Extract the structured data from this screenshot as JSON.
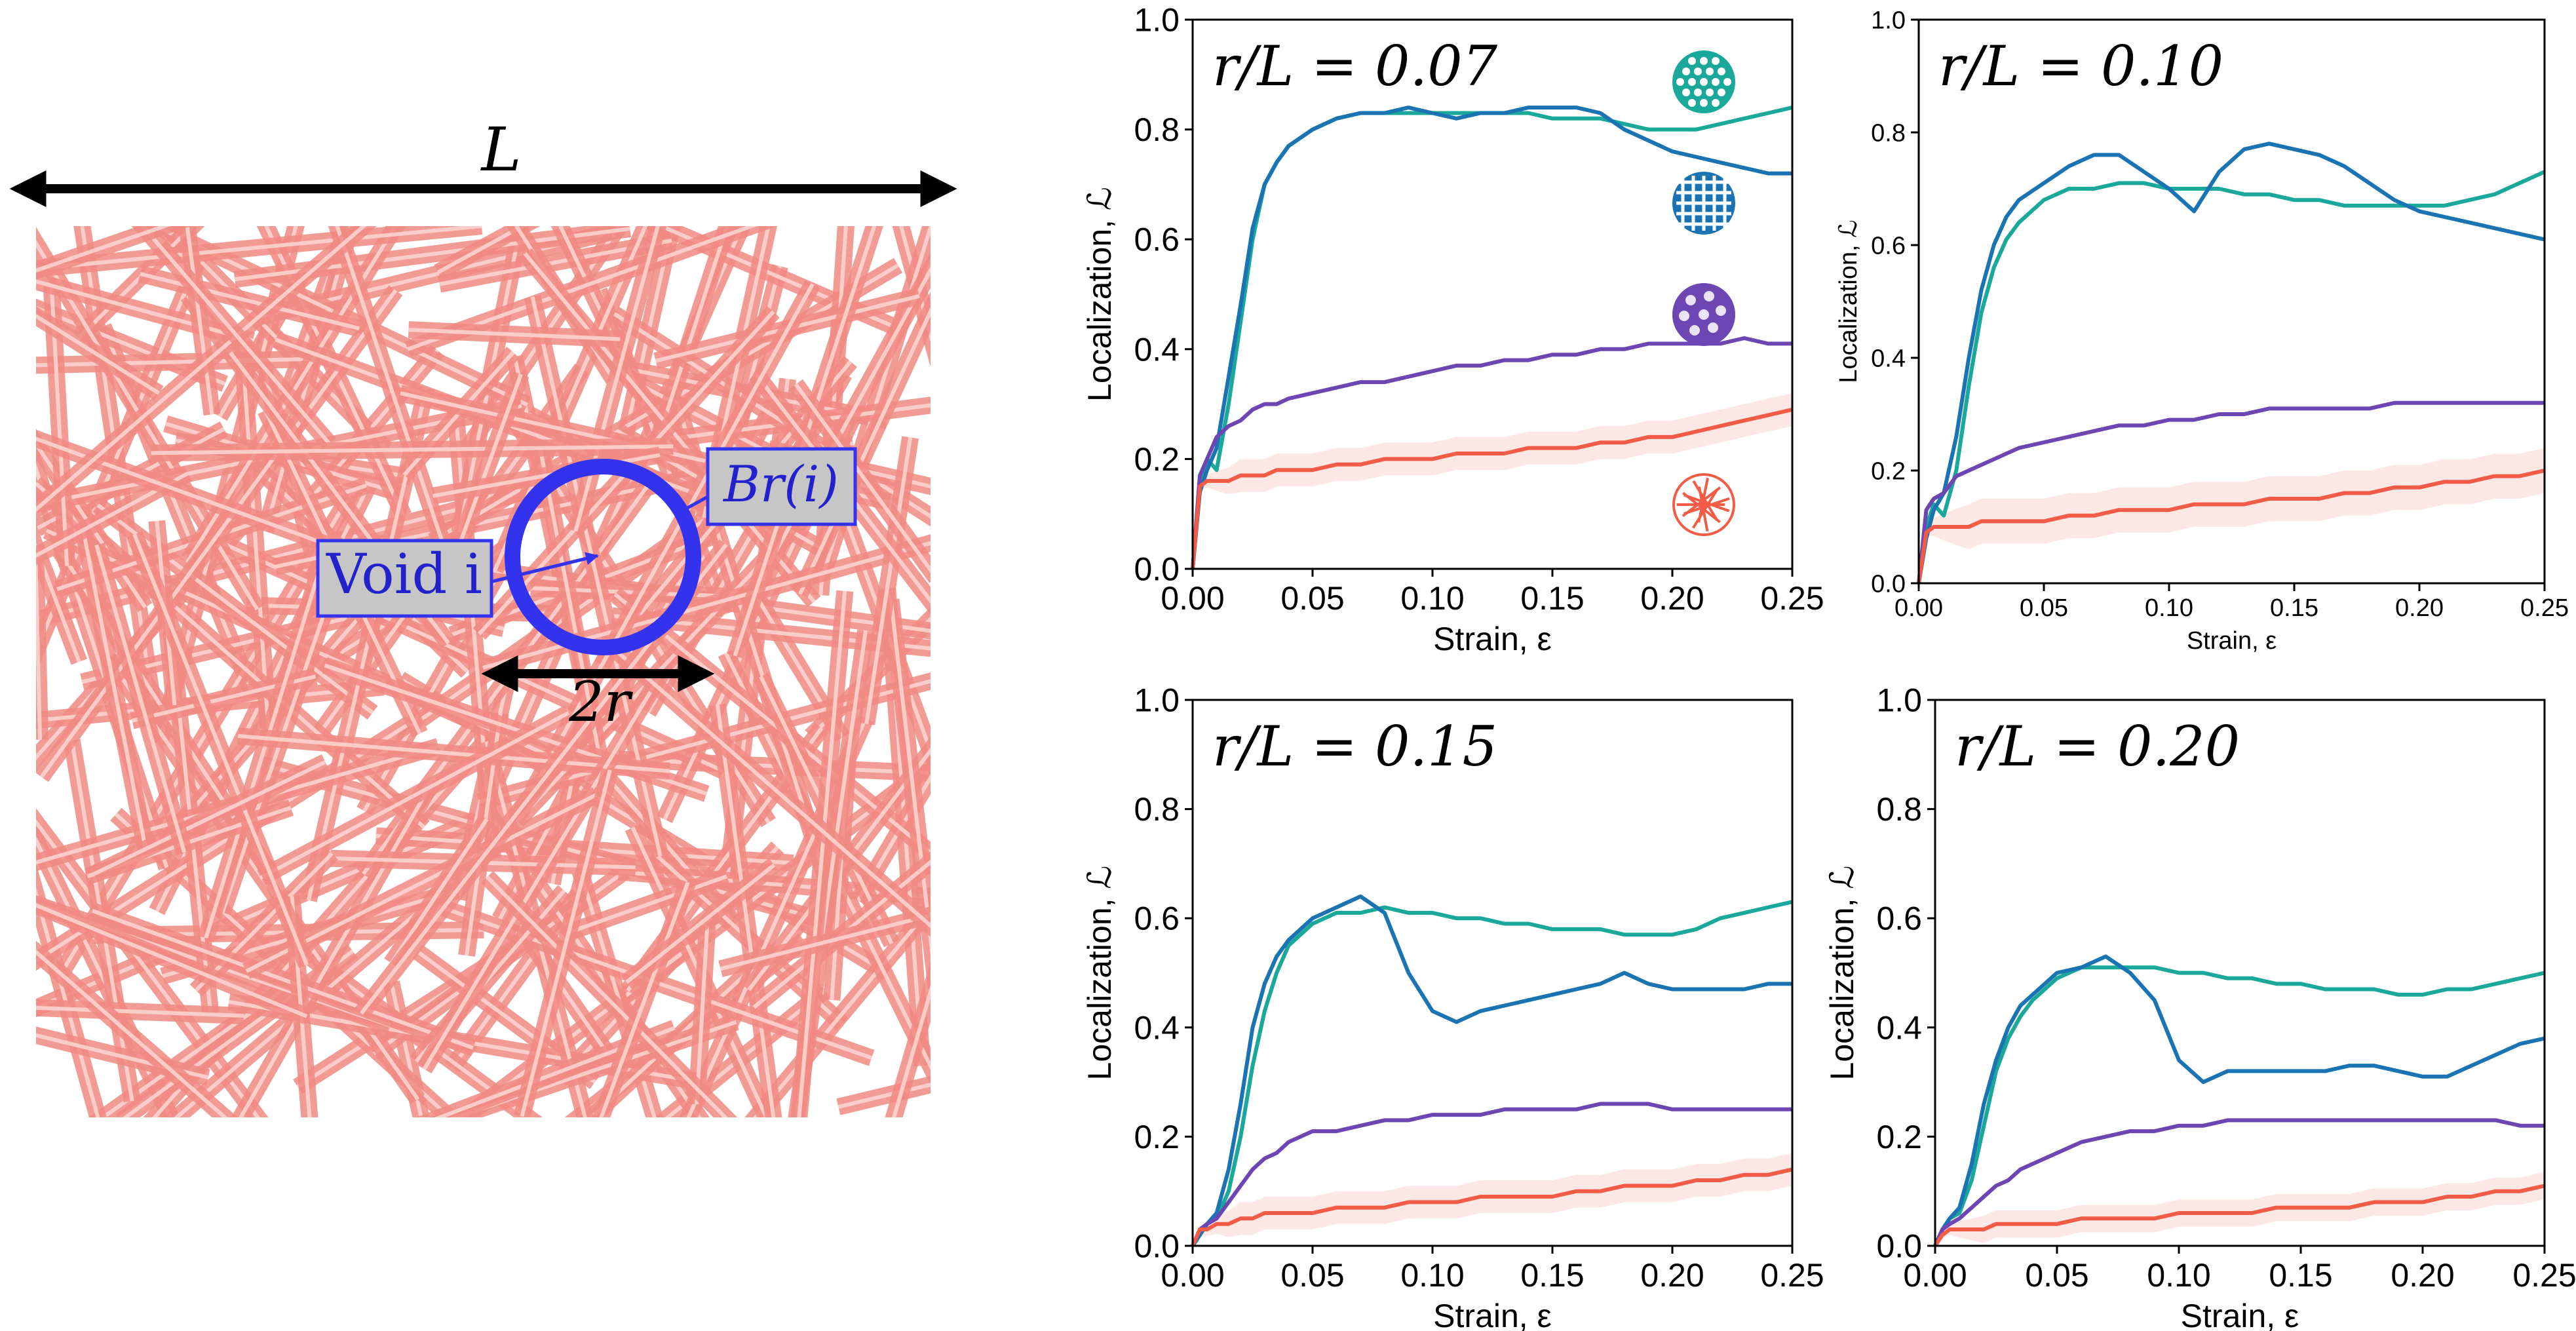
{
  "schematic": {
    "length_label": "L",
    "radius_label": "2r",
    "void_label": "Void i",
    "ball_label": "Br(i)",
    "fiber_color": "#f08a82",
    "circle_color": "#3333ee"
  },
  "legend_icons": [
    {
      "name": "hexagonal-network-icon",
      "color": "#1aa89a"
    },
    {
      "name": "square-lattice-icon",
      "color": "#1a74b4"
    },
    {
      "name": "voronoi-network-icon",
      "color": "#6e46b4"
    },
    {
      "name": "random-fiber-network-icon",
      "color": "#f25c47"
    }
  ],
  "chart_data": [
    {
      "type": "line",
      "title": "r/L = 0.07",
      "xlabel": "Strain, ε",
      "ylabel": "Localization, ℒ",
      "xlim": [
        0.0,
        0.25
      ],
      "ylim": [
        0.0,
        1.0
      ],
      "xticks": [
        "0.00",
        "0.05",
        "0.10",
        "0.15",
        "0.20",
        "0.25"
      ],
      "yticks": [
        "0.0",
        "0.2",
        "0.4",
        "0.6",
        "0.8",
        "1.0"
      ],
      "x": [
        0,
        0.003,
        0.006,
        0.01,
        0.015,
        0.02,
        0.025,
        0.03,
        0.035,
        0.04,
        0.05,
        0.06,
        0.07,
        0.08,
        0.09,
        0.1,
        0.11,
        0.12,
        0.13,
        0.14,
        0.15,
        0.16,
        0.17,
        0.18,
        0.19,
        0.2,
        0.21,
        0.22,
        0.23,
        0.24,
        0.25
      ],
      "series": [
        {
          "name": "hexagonal",
          "color": "#1aa89a",
          "values": [
            0.0,
            0.15,
            0.2,
            0.18,
            0.3,
            0.45,
            0.6,
            0.7,
            0.74,
            0.77,
            0.8,
            0.82,
            0.83,
            0.83,
            0.83,
            0.83,
            0.83,
            0.83,
            0.83,
            0.83,
            0.82,
            0.82,
            0.82,
            0.81,
            0.8,
            0.8,
            0.8,
            0.81,
            0.82,
            0.83,
            0.84
          ]
        },
        {
          "name": "square",
          "color": "#1a74b4",
          "values": [
            0.0,
            0.14,
            0.18,
            0.22,
            0.35,
            0.48,
            0.62,
            0.7,
            0.74,
            0.77,
            0.8,
            0.82,
            0.83,
            0.83,
            0.84,
            0.83,
            0.82,
            0.83,
            0.83,
            0.84,
            0.84,
            0.84,
            0.83,
            0.8,
            0.78,
            0.76,
            0.75,
            0.74,
            0.73,
            0.72,
            0.72
          ]
        },
        {
          "name": "voronoi",
          "color": "#6e46b4",
          "values": [
            0.0,
            0.17,
            0.2,
            0.24,
            0.26,
            0.27,
            0.29,
            0.3,
            0.3,
            0.31,
            0.32,
            0.33,
            0.34,
            0.34,
            0.35,
            0.36,
            0.37,
            0.37,
            0.38,
            0.38,
            0.39,
            0.39,
            0.4,
            0.4,
            0.41,
            0.41,
            0.41,
            0.41,
            0.42,
            0.41,
            0.41
          ]
        },
        {
          "name": "random fiber",
          "color": "#f25c47",
          "band": 0.03,
          "values": [
            0.0,
            0.15,
            0.16,
            0.16,
            0.16,
            0.17,
            0.17,
            0.17,
            0.18,
            0.18,
            0.18,
            0.19,
            0.19,
            0.2,
            0.2,
            0.2,
            0.21,
            0.21,
            0.21,
            0.22,
            0.22,
            0.22,
            0.23,
            0.23,
            0.24,
            0.24,
            0.25,
            0.26,
            0.27,
            0.28,
            0.29
          ]
        }
      ]
    },
    {
      "type": "line",
      "title": "r/L = 0.10",
      "xlabel": "Strain, ε",
      "ylabel": "Localization, ℒ",
      "xlim": [
        0.0,
        0.25
      ],
      "ylim": [
        0.0,
        1.0
      ],
      "xticks": [
        "0.00",
        "0.05",
        "0.10",
        "0.15",
        "0.20",
        "0.25"
      ],
      "yticks": [
        "0.0",
        "0.2",
        "0.4",
        "0.6",
        "0.8",
        "1.0"
      ],
      "x": [
        0,
        0.003,
        0.006,
        0.01,
        0.015,
        0.02,
        0.025,
        0.03,
        0.035,
        0.04,
        0.05,
        0.06,
        0.07,
        0.08,
        0.09,
        0.1,
        0.11,
        0.12,
        0.13,
        0.14,
        0.15,
        0.16,
        0.17,
        0.18,
        0.19,
        0.2,
        0.21,
        0.22,
        0.23,
        0.24,
        0.25
      ],
      "series": [
        {
          "name": "hexagonal",
          "color": "#1aa89a",
          "values": [
            0.0,
            0.1,
            0.14,
            0.12,
            0.2,
            0.35,
            0.48,
            0.56,
            0.61,
            0.64,
            0.68,
            0.7,
            0.7,
            0.71,
            0.71,
            0.7,
            0.7,
            0.7,
            0.69,
            0.69,
            0.68,
            0.68,
            0.67,
            0.67,
            0.67,
            0.67,
            0.67,
            0.68,
            0.69,
            0.71,
            0.73
          ]
        },
        {
          "name": "square",
          "color": "#1a74b4",
          "values": [
            0.0,
            0.08,
            0.13,
            0.16,
            0.26,
            0.4,
            0.52,
            0.6,
            0.65,
            0.68,
            0.71,
            0.74,
            0.76,
            0.76,
            0.73,
            0.7,
            0.66,
            0.73,
            0.77,
            0.78,
            0.77,
            0.76,
            0.74,
            0.71,
            0.68,
            0.66,
            0.65,
            0.64,
            0.63,
            0.62,
            0.61
          ]
        },
        {
          "name": "voronoi",
          "color": "#6e46b4",
          "values": [
            0.0,
            0.13,
            0.15,
            0.16,
            0.19,
            0.2,
            0.21,
            0.22,
            0.23,
            0.24,
            0.25,
            0.26,
            0.27,
            0.28,
            0.28,
            0.29,
            0.29,
            0.3,
            0.3,
            0.31,
            0.31,
            0.31,
            0.31,
            0.31,
            0.32,
            0.32,
            0.32,
            0.32,
            0.32,
            0.32,
            0.32
          ]
        },
        {
          "name": "random fiber",
          "color": "#f25c47",
          "band": 0.04,
          "values": [
            0.0,
            0.09,
            0.1,
            0.1,
            0.1,
            0.1,
            0.11,
            0.11,
            0.11,
            0.11,
            0.11,
            0.12,
            0.12,
            0.13,
            0.13,
            0.13,
            0.14,
            0.14,
            0.14,
            0.15,
            0.15,
            0.15,
            0.16,
            0.16,
            0.17,
            0.17,
            0.18,
            0.18,
            0.19,
            0.19,
            0.2
          ]
        }
      ]
    },
    {
      "type": "line",
      "title": "r/L = 0.15",
      "xlabel": "Strain, ε",
      "ylabel": "Localization, ℒ",
      "xlim": [
        0.0,
        0.25
      ],
      "ylim": [
        0.0,
        1.0
      ],
      "xticks": [
        "0.00",
        "0.05",
        "0.10",
        "0.15",
        "0.20",
        "0.25"
      ],
      "yticks": [
        "0.0",
        "0.2",
        "0.4",
        "0.6",
        "0.8",
        "1.0"
      ],
      "x": [
        0,
        0.003,
        0.006,
        0.01,
        0.015,
        0.02,
        0.025,
        0.03,
        0.035,
        0.04,
        0.05,
        0.06,
        0.07,
        0.08,
        0.09,
        0.1,
        0.11,
        0.12,
        0.13,
        0.14,
        0.15,
        0.16,
        0.17,
        0.18,
        0.19,
        0.2,
        0.21,
        0.22,
        0.23,
        0.24,
        0.25
      ],
      "series": [
        {
          "name": "hexagonal",
          "color": "#1aa89a",
          "values": [
            0.0,
            0.02,
            0.04,
            0.05,
            0.1,
            0.2,
            0.33,
            0.43,
            0.5,
            0.55,
            0.59,
            0.61,
            0.61,
            0.62,
            0.61,
            0.61,
            0.6,
            0.6,
            0.59,
            0.59,
            0.58,
            0.58,
            0.58,
            0.57,
            0.57,
            0.57,
            0.58,
            0.6,
            0.61,
            0.62,
            0.63
          ]
        },
        {
          "name": "square",
          "color": "#1a74b4",
          "values": [
            0.0,
            0.02,
            0.04,
            0.06,
            0.14,
            0.26,
            0.4,
            0.48,
            0.53,
            0.56,
            0.6,
            0.62,
            0.64,
            0.61,
            0.5,
            0.43,
            0.41,
            0.43,
            0.44,
            0.45,
            0.46,
            0.47,
            0.48,
            0.5,
            0.48,
            0.47,
            0.47,
            0.47,
            0.47,
            0.48,
            0.48
          ]
        },
        {
          "name": "voronoi",
          "color": "#6e46b4",
          "values": [
            0.0,
            0.03,
            0.04,
            0.05,
            0.08,
            0.11,
            0.14,
            0.16,
            0.17,
            0.19,
            0.21,
            0.21,
            0.22,
            0.23,
            0.23,
            0.24,
            0.24,
            0.24,
            0.25,
            0.25,
            0.25,
            0.25,
            0.26,
            0.26,
            0.26,
            0.25,
            0.25,
            0.25,
            0.25,
            0.25,
            0.25
          ]
        },
        {
          "name": "random fiber",
          "color": "#f25c47",
          "band": 0.03,
          "values": [
            0.0,
            0.03,
            0.03,
            0.04,
            0.04,
            0.05,
            0.05,
            0.06,
            0.06,
            0.06,
            0.06,
            0.07,
            0.07,
            0.07,
            0.08,
            0.08,
            0.08,
            0.09,
            0.09,
            0.09,
            0.09,
            0.1,
            0.1,
            0.11,
            0.11,
            0.11,
            0.12,
            0.12,
            0.13,
            0.13,
            0.14
          ]
        }
      ]
    },
    {
      "type": "line",
      "title": "r/L = 0.20",
      "xlabel": "Strain, ε",
      "ylabel": "Localization, ℒ",
      "xlim": [
        0.0,
        0.25
      ],
      "ylim": [
        0.0,
        1.0
      ],
      "xticks": [
        "0.00",
        "0.05",
        "0.10",
        "0.15",
        "0.20",
        "0.25"
      ],
      "yticks": [
        "0.0",
        "0.2",
        "0.4",
        "0.6",
        "0.8",
        "1.0"
      ],
      "x": [
        0,
        0.003,
        0.006,
        0.01,
        0.015,
        0.02,
        0.025,
        0.03,
        0.035,
        0.04,
        0.05,
        0.06,
        0.07,
        0.08,
        0.09,
        0.1,
        0.11,
        0.12,
        0.13,
        0.14,
        0.15,
        0.16,
        0.17,
        0.18,
        0.19,
        0.2,
        0.21,
        0.22,
        0.23,
        0.24,
        0.25
      ],
      "series": [
        {
          "name": "hexagonal",
          "color": "#1aa89a",
          "values": [
            0.0,
            0.03,
            0.05,
            0.06,
            0.12,
            0.22,
            0.32,
            0.38,
            0.42,
            0.45,
            0.49,
            0.51,
            0.51,
            0.51,
            0.51,
            0.5,
            0.5,
            0.49,
            0.49,
            0.48,
            0.48,
            0.47,
            0.47,
            0.47,
            0.46,
            0.46,
            0.47,
            0.47,
            0.48,
            0.49,
            0.5
          ]
        },
        {
          "name": "square",
          "color": "#1a74b4",
          "values": [
            0.0,
            0.03,
            0.05,
            0.07,
            0.15,
            0.26,
            0.34,
            0.4,
            0.44,
            0.46,
            0.5,
            0.51,
            0.53,
            0.5,
            0.45,
            0.34,
            0.3,
            0.32,
            0.32,
            0.32,
            0.32,
            0.32,
            0.33,
            0.33,
            0.32,
            0.31,
            0.31,
            0.33,
            0.35,
            0.37,
            0.38
          ]
        },
        {
          "name": "voronoi",
          "color": "#6e46b4",
          "values": [
            0.0,
            0.03,
            0.04,
            0.05,
            0.07,
            0.09,
            0.11,
            0.12,
            0.14,
            0.15,
            0.17,
            0.19,
            0.2,
            0.21,
            0.21,
            0.22,
            0.22,
            0.23,
            0.23,
            0.23,
            0.23,
            0.23,
            0.23,
            0.23,
            0.23,
            0.23,
            0.23,
            0.23,
            0.23,
            0.22,
            0.22
          ]
        },
        {
          "name": "random fiber",
          "color": "#f25c47",
          "band": 0.025,
          "values": [
            0.0,
            0.02,
            0.03,
            0.03,
            0.03,
            0.03,
            0.04,
            0.04,
            0.04,
            0.04,
            0.04,
            0.05,
            0.05,
            0.05,
            0.05,
            0.06,
            0.06,
            0.06,
            0.06,
            0.07,
            0.07,
            0.07,
            0.07,
            0.08,
            0.08,
            0.08,
            0.09,
            0.09,
            0.1,
            0.1,
            0.11
          ]
        }
      ]
    }
  ]
}
